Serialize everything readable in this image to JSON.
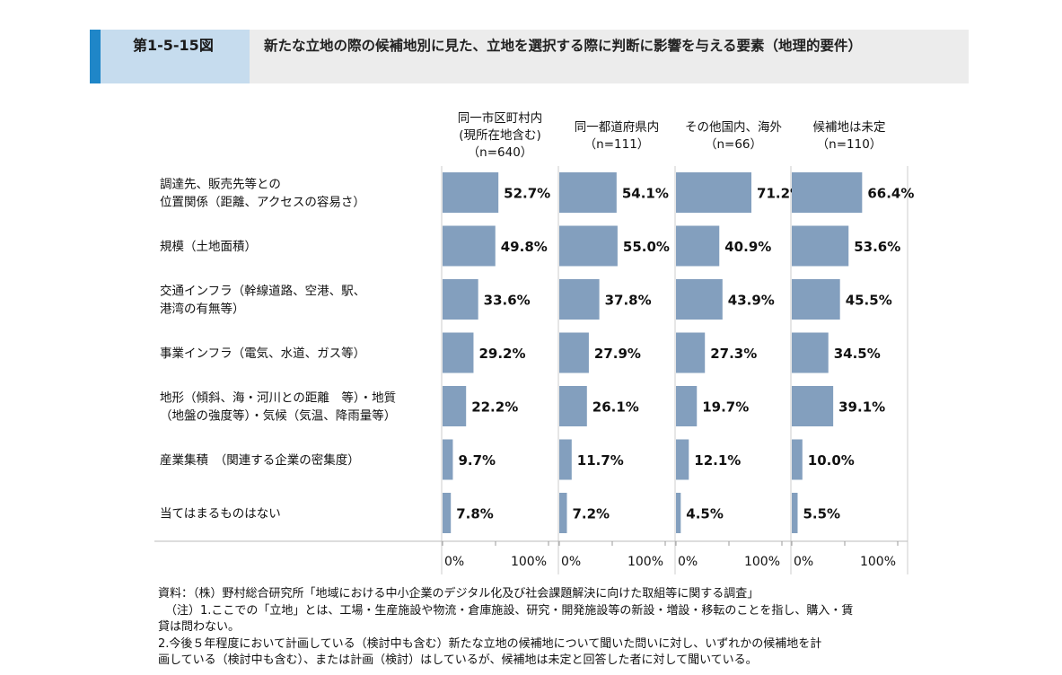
{
  "header": {
    "figure_number": "第1-5-15図",
    "title": "新たな立地の際の候補地別に見た、立地を選択する際に判断に影響を与える要素（地理的要件）"
  },
  "chart_data": {
    "type": "bar",
    "orientation": "horizontal",
    "columns": [
      {
        "label_lines": [
          "同一市区町村内",
          "(現所在地含む)",
          "（n=640）"
        ]
      },
      {
        "label_lines": [
          "同一都道府県内",
          "（n=111）"
        ]
      },
      {
        "label_lines": [
          "その他国内、海外",
          "（n=66）"
        ]
      },
      {
        "label_lines": [
          "候補地は未定",
          "（n=110）"
        ]
      }
    ],
    "categories": [
      [
        "調達先、販売先等との",
        "位置関係（距離、アクセスの容易さ）"
      ],
      [
        "規模（土地面積）"
      ],
      [
        "交通インフラ（幹線道路、空港、駅、",
        "港湾の有無等）"
      ],
      [
        "事業インフラ（電気、水道、ガス等）"
      ],
      [
        "地形（傾斜、海・河川との距離　等）・地質",
        "（地盤の強度等）・気候（気温、降雨量等）"
      ],
      [
        "産業集積　（関連する企業の密集度）"
      ],
      [
        "当てはまるものはない"
      ]
    ],
    "series": [
      {
        "values": [
          52.7,
          49.8,
          33.6,
          29.2,
          22.2,
          9.7,
          7.8
        ],
        "labels": [
          "52.7%",
          "49.8%",
          "33.6%",
          "29.2%",
          "22.2%",
          "9.7%",
          "7.8%"
        ]
      },
      {
        "values": [
          54.1,
          55.0,
          37.8,
          27.9,
          26.1,
          11.7,
          7.2
        ],
        "labels": [
          "54.1%",
          "55.0%",
          "37.8%",
          "27.9%",
          "26.1%",
          "11.7%",
          "7.2%"
        ]
      },
      {
        "values": [
          71.2,
          40.9,
          43.9,
          27.3,
          19.7,
          12.1,
          4.5
        ],
        "labels": [
          "71.2%",
          "40.9%",
          "43.9%",
          "27.3%",
          "19.7%",
          "12.1%",
          "4.5%"
        ]
      },
      {
        "values": [
          66.4,
          53.6,
          45.5,
          34.5,
          39.1,
          10.0,
          5.5
        ],
        "labels": [
          "66.4%",
          "53.6%",
          "45.5%",
          "34.5%",
          "39.1%",
          "10.0%",
          "5.5%"
        ]
      }
    ],
    "axis": {
      "min": 0,
      "max": 100,
      "tick_labels": [
        "0%",
        "100%"
      ]
    },
    "bar_color": "#839fbe"
  },
  "notes": [
    "資料：（株）野村総合研究所「地域における中小企業のデジタル化及び社会課題解決に向けた取組等に関する調査」",
    "（注）1.ここでの「立地」とは、工場・生産施設や物流・倉庫施設、研究・開発施設等の新設・増設・移転のことを指し、購入・賃",
    "貸は問わない。",
    "2.今後５年程度において計画している（検討中も含む）新たな立地の候補地について聞いた問いに対し、いずれかの候補地を計",
    "画している（検討中も含む）、または計画（検討）はしているが、候補地は未定と回答した者に対して聞いている。"
  ]
}
